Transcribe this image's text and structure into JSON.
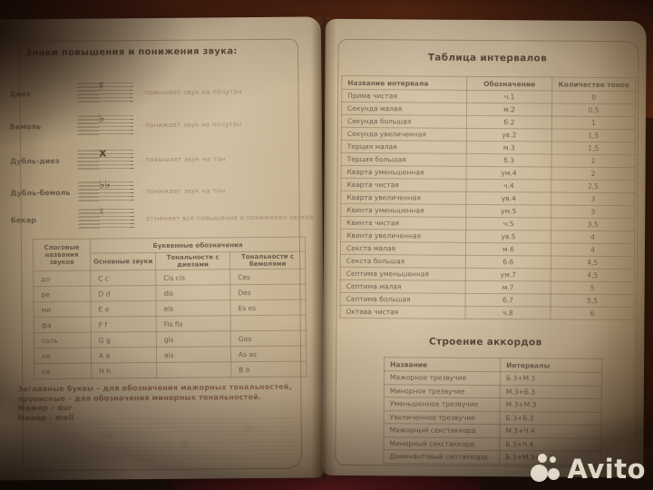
{
  "left_page": {
    "title": "Знаки повышения и понижения звука:",
    "accidentals": [
      {
        "name": "Диез",
        "symbol": "♯",
        "description": "- повышает звук на полутон"
      },
      {
        "name": "Бемоль",
        "symbol": "♭",
        "description": "- понижает звук на полутон"
      },
      {
        "name": "Дубль-диез",
        "symbol": "x",
        "description": "- повышает звук на тон"
      },
      {
        "name": "Дубль-бемоль",
        "symbol": "♭♭",
        "description": "- понижает звук на тон"
      },
      {
        "name": "Бекар",
        "symbol": "♮",
        "description": "- отменяет все повышения и понижения звуков"
      }
    ],
    "letter_table": {
      "group_header": "Буквенные обозначения",
      "columns": [
        "Слоговые названия звуков",
        "Основные звуки",
        "Тональности с диезами",
        "Тональности с бемолями"
      ],
      "rows": [
        [
          "до",
          "C c",
          "Cis cis",
          "Ces"
        ],
        [
          "ре",
          "D d",
          "dis",
          "Des"
        ],
        [
          "ми",
          "E e",
          "eis",
          "Es es"
        ],
        [
          "фа",
          "F f",
          "Fis fis",
          ""
        ],
        [
          "соль",
          "G g",
          "gis",
          "Ges"
        ],
        [
          "ля",
          "A a",
          "ais",
          "As as"
        ],
        [
          "си",
          "H h",
          "",
          "B b"
        ]
      ]
    },
    "notes": [
      "Заглавные буквы – для обозначения мажорных тональностей,",
      "прописные – для обозначения минорных тональностей.",
      "Мажор – dur",
      "Минор – moll"
    ]
  },
  "right_page": {
    "intervals": {
      "title": "Таблица интервалов",
      "columns": [
        "Название интервала",
        "Обозначение",
        "Количество тонов"
      ],
      "rows": [
        [
          "Прима чистая",
          "ч.1",
          "0"
        ],
        [
          "Секунда малая",
          "м.2",
          "0,5"
        ],
        [
          "Секунда большая",
          "б.2",
          "1"
        ],
        [
          "Секунда увеличенная",
          "ув.2",
          "1,5"
        ],
        [
          "Терция малая",
          "м.3",
          "1,5"
        ],
        [
          "Терция большая",
          "б.3",
          "2"
        ],
        [
          "Кварта уменьшенная",
          "ум.4",
          "2"
        ],
        [
          "Кварта чистая",
          "ч.4",
          "2,5"
        ],
        [
          "Кварта увеличенная",
          "ув.4",
          "3"
        ],
        [
          "Квинта уменьшенная",
          "ум.5",
          "3"
        ],
        [
          "Квинта чистая",
          "ч.5",
          "3,5"
        ],
        [
          "Квинта увеличенная",
          "ув.5",
          "4"
        ],
        [
          "Секста малая",
          "м.6",
          "4"
        ],
        [
          "Секста большая",
          "б.6",
          "4,5"
        ],
        [
          "Септима уменьшенная",
          "ум.7",
          "4,5"
        ],
        [
          "Септима малая",
          "м.7",
          "5"
        ],
        [
          "Септима большая",
          "б.7",
          "5,5"
        ],
        [
          "Октава чистая",
          "ч.8",
          "6"
        ]
      ]
    },
    "chords": {
      "title": "Строение аккордов",
      "columns": [
        "Название",
        "Интервалы"
      ],
      "rows": [
        [
          "Мажорное трезвучие",
          "Б.3+М.3"
        ],
        [
          "Минорное трезвучие",
          "М.3+Б.3"
        ],
        [
          "Уменьшенное трезвучие",
          "М.3+М.3"
        ],
        [
          "Увеличенное трезвучие",
          "Б.3+Б.3"
        ],
        [
          "Мажорный секстаккорд",
          "М.3+Ч.4"
        ],
        [
          "Минорный секстаккорд",
          "Б.3+Ч.4"
        ],
        [
          "Доминантовый септаккорд",
          "Б.3+М.3+М.3"
        ]
      ]
    }
  },
  "watermark": {
    "brand": "Avito"
  }
}
